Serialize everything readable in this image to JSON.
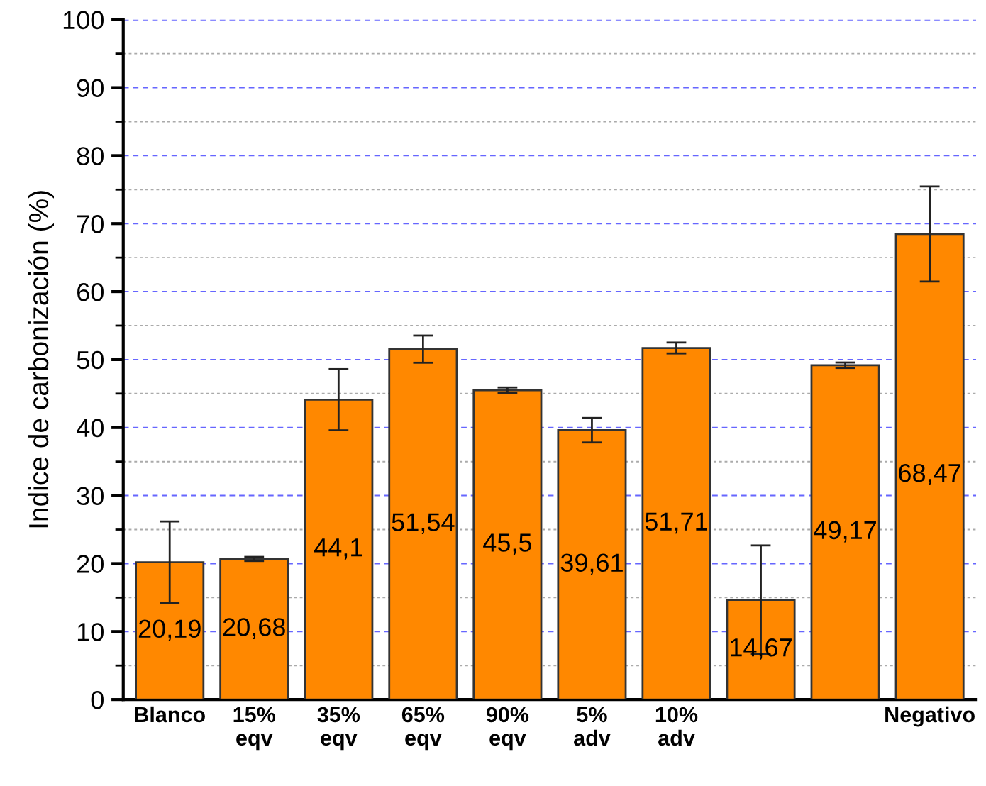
{
  "chart_data": {
    "type": "bar",
    "ylabel": "Indice de carbonización (%)",
    "categories": [
      "Blanco",
      "15%\neqv",
      "35%\neqv",
      "65%\neqv",
      "90%\neqv",
      "5%\nadv",
      "10%\nadv",
      null,
      null,
      "Negativo"
    ],
    "values": [
      20.19,
      20.68,
      44.1,
      51.54,
      45.5,
      39.61,
      51.71,
      14.67,
      49.17,
      68.47
    ],
    "value_labels": [
      "20,19",
      "20,68",
      "44,1",
      "51,54",
      "45,5",
      "39,61",
      "51,71",
      "14,67",
      "49,17",
      "68,47"
    ],
    "errors": [
      6,
      0.3,
      4.5,
      2,
      0.4,
      1.8,
      0.8,
      8,
      0.4,
      7
    ],
    "color": "#ff8800",
    "ylim": [
      0,
      100
    ],
    "yticks": [
      0,
      10,
      20,
      30,
      40,
      50,
      60,
      70,
      80,
      90,
      100
    ],
    "grid": "y",
    "legend": false
  }
}
